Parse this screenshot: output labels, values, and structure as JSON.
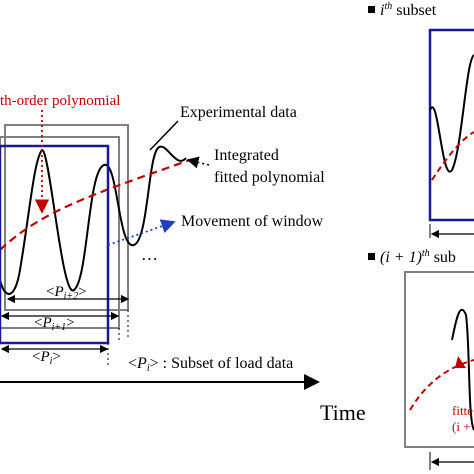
{
  "labels": {
    "polynomial": "th-order polynomial",
    "experimental": "Experimental data",
    "integrated_l1": "Integrated",
    "integrated_l2": "fitted polynomial",
    "movement": "Movement of window",
    "ellipsis": "…",
    "p_i_plus_2": "i+2",
    "p_i_plus_1": "i+1",
    "p_i": "i",
    "legend_sym_p": "P",
    "legend_sym_i": "i",
    "legend_text": ": Subset of load data",
    "time": "Time",
    "ith_sup": "th",
    "ith_text": " subset",
    "i1_prefix": "(i + 1)",
    "i1_sup": "th",
    "i1_text": " sub",
    "fitted_partial": "fitte",
    "i1_partial": "(i +"
  },
  "colors": {
    "window_front": "#1a1a8c",
    "window_back": "#808080",
    "fit_curve": "#c00000",
    "data_curve": "#000000",
    "movement_arrow": "#1f3fbf"
  }
}
